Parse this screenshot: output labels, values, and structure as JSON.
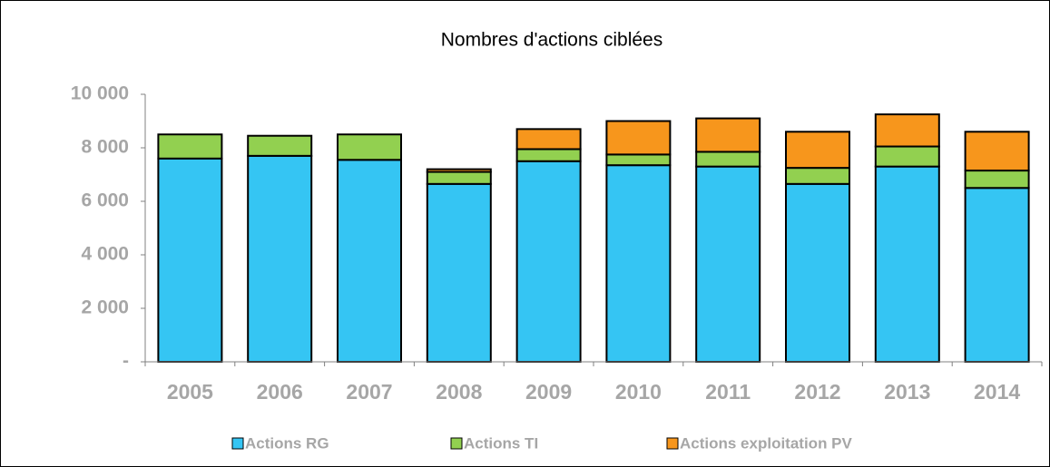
{
  "chart_data": {
    "type": "stacked_bar",
    "title": "Nombres d'actions ciblées",
    "categories": [
      "2005",
      "2006",
      "2007",
      "2008",
      "2009",
      "2010",
      "2011",
      "2012",
      "2013",
      "2014"
    ],
    "series": [
      {
        "name": "Actions RG",
        "color": "#35c5f3",
        "values": [
          7600,
          7700,
          7550,
          6650,
          7500,
          7350,
          7300,
          6650,
          7300,
          6500
        ]
      },
      {
        "name": "Actions TI",
        "color": "#92d050",
        "values": [
          900,
          750,
          950,
          450,
          450,
          400,
          550,
          600,
          750,
          650
        ]
      },
      {
        "name": "Actions exploitation PV",
        "color": "#f7961c",
        "values": [
          0,
          0,
          0,
          100,
          750,
          1250,
          1250,
          1350,
          1200,
          1450
        ]
      }
    ],
    "ylim": [
      0,
      10000
    ],
    "yticks": [
      {
        "value": 0,
        "label": "-"
      },
      {
        "value": 2000,
        "label": "2 000"
      },
      {
        "value": 4000,
        "label": "4 000"
      },
      {
        "value": 6000,
        "label": "6 000"
      },
      {
        "value": 8000,
        "label": "8 000"
      },
      {
        "value": 10000,
        "label": "10 000"
      }
    ],
    "grid": false
  }
}
